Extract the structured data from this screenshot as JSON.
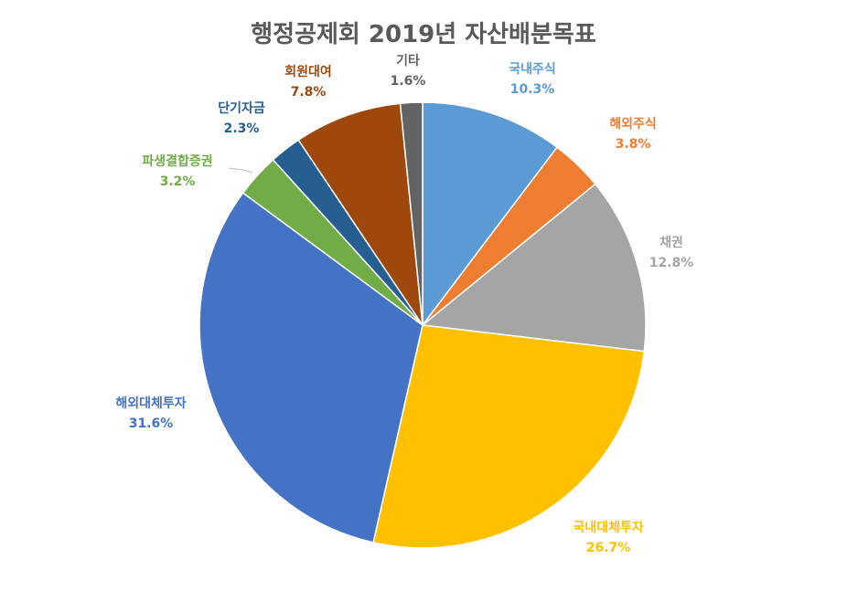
{
  "chart_data": {
    "type": "pie",
    "title": "행정공제회 2019년 자산배분목표",
    "slices": [
      {
        "label": "국내주식",
        "value": 10.3,
        "value_label": "10.3%",
        "color": "#5B9BD5"
      },
      {
        "label": "해외주식",
        "value": 3.8,
        "value_label": "3.8%",
        "color": "#ED7D31"
      },
      {
        "label": "채권",
        "value": 12.8,
        "value_label": "12.8%",
        "color": "#A5A5A5"
      },
      {
        "label": "국내대체투자",
        "value": 26.7,
        "value_label": "26.7%",
        "color": "#FFC000"
      },
      {
        "label": "해외대체투자",
        "value": 31.6,
        "value_label": "31.6%",
        "color": "#4472C4"
      },
      {
        "label": "파생결합증권",
        "value": 3.2,
        "value_label": "3.2%",
        "color": "#70AD47"
      },
      {
        "label": "단기자금",
        "value": 2.3,
        "value_label": "2.3%",
        "color": "#255E91"
      },
      {
        "label": "회원대여",
        "value": 7.8,
        "value_label": "7.8%",
        "color": "#9E480E"
      },
      {
        "label": "기타",
        "value": 1.6,
        "value_label": "1.6%",
        "color": "#636363"
      }
    ]
  }
}
